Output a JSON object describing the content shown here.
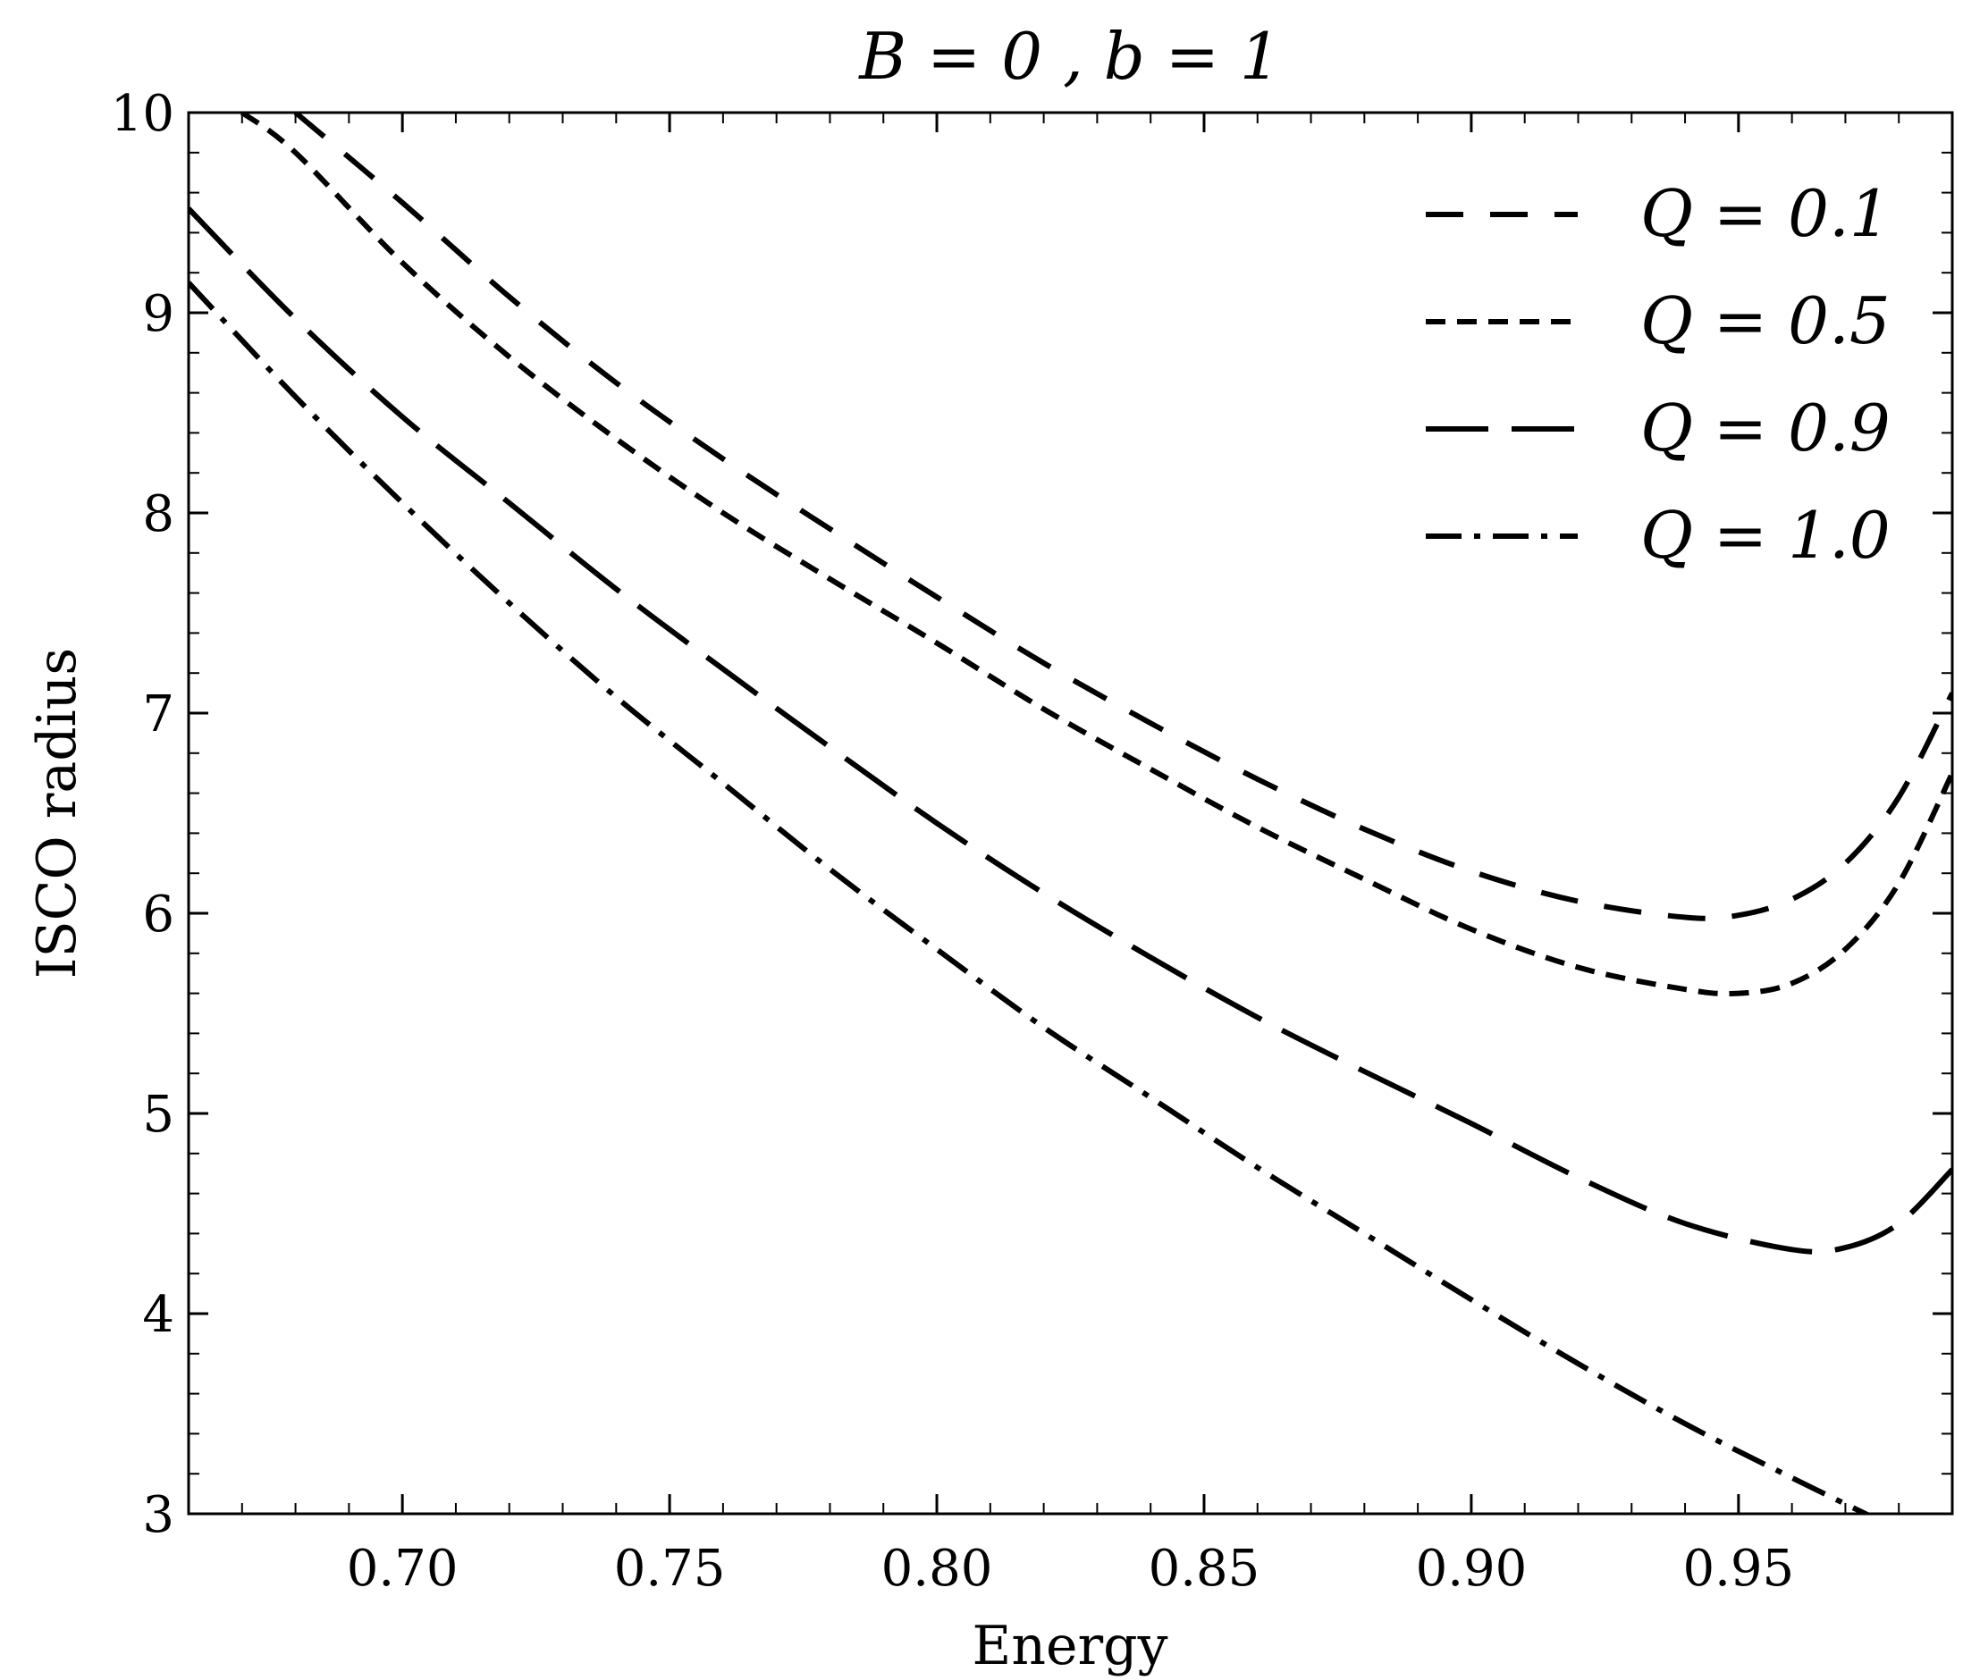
{
  "chart_data": {
    "type": "line",
    "title": "B = 0 , b = 1",
    "xlabel": "Energy",
    "ylabel": "ISCO radius",
    "xlim": [
      0.66,
      0.99
    ],
    "ylim": [
      3,
      10
    ],
    "xticks": [
      0.7,
      0.75,
      0.8,
      0.85,
      0.9,
      0.95
    ],
    "xtick_labels": [
      "0.70",
      "0.75",
      "0.80",
      "0.85",
      "0.90",
      "0.95"
    ],
    "yticks": [
      3,
      4,
      5,
      6,
      7,
      8,
      9,
      10
    ],
    "ytick_labels": [
      "3",
      "4",
      "5",
      "6",
      "7",
      "8",
      "9",
      "10"
    ],
    "grid": false,
    "legend_position": "top-right",
    "series": [
      {
        "name": "Q = 0.1",
        "line_style": "dashed",
        "x": [
          0.68,
          0.7,
          0.72,
          0.74,
          0.76,
          0.78,
          0.8,
          0.82,
          0.84,
          0.86,
          0.88,
          0.9,
          0.92,
          0.94,
          0.95,
          0.96,
          0.97,
          0.98,
          0.99
        ],
        "y": [
          10.0,
          9.55,
          9.08,
          8.65,
          8.27,
          7.92,
          7.58,
          7.25,
          6.95,
          6.67,
          6.42,
          6.21,
          6.06,
          5.98,
          5.99,
          6.07,
          6.25,
          6.58,
          7.1
        ]
      },
      {
        "name": "Q = 0.5",
        "line_style": "short-dashed",
        "x": [
          0.67,
          0.68,
          0.7,
          0.72,
          0.74,
          0.76,
          0.78,
          0.8,
          0.82,
          0.84,
          0.86,
          0.88,
          0.9,
          0.92,
          0.94,
          0.95,
          0.96,
          0.97,
          0.98,
          0.99
        ],
        "y": [
          10.0,
          9.8,
          9.25,
          8.78,
          8.37,
          8.0,
          7.67,
          7.35,
          7.02,
          6.72,
          6.43,
          6.17,
          5.92,
          5.73,
          5.62,
          5.6,
          5.65,
          5.82,
          6.15,
          6.7
        ]
      },
      {
        "name": "Q = 0.9",
        "line_style": "long-dashed",
        "x": [
          0.66,
          0.68,
          0.7,
          0.72,
          0.74,
          0.76,
          0.78,
          0.8,
          0.82,
          0.84,
          0.86,
          0.88,
          0.9,
          0.92,
          0.94,
          0.96,
          0.97,
          0.98,
          0.99
        ],
        "y": [
          9.52,
          8.97,
          8.48,
          8.05,
          7.62,
          7.22,
          6.83,
          6.45,
          6.1,
          5.78,
          5.48,
          5.21,
          4.95,
          4.68,
          4.45,
          4.32,
          4.33,
          4.45,
          4.72
        ]
      },
      {
        "name": "Q = 1.0",
        "line_style": "dash-dot",
        "x": [
          0.66,
          0.68,
          0.7,
          0.72,
          0.74,
          0.76,
          0.78,
          0.8,
          0.82,
          0.84,
          0.86,
          0.88,
          0.9,
          0.92,
          0.94,
          0.96,
          0.98,
          0.99
        ],
        "y": [
          9.15,
          8.58,
          8.05,
          7.55,
          7.08,
          6.65,
          6.22,
          5.82,
          5.43,
          5.08,
          4.73,
          4.4,
          4.07,
          3.75,
          3.45,
          3.18,
          2.92,
          2.8
        ]
      }
    ]
  }
}
